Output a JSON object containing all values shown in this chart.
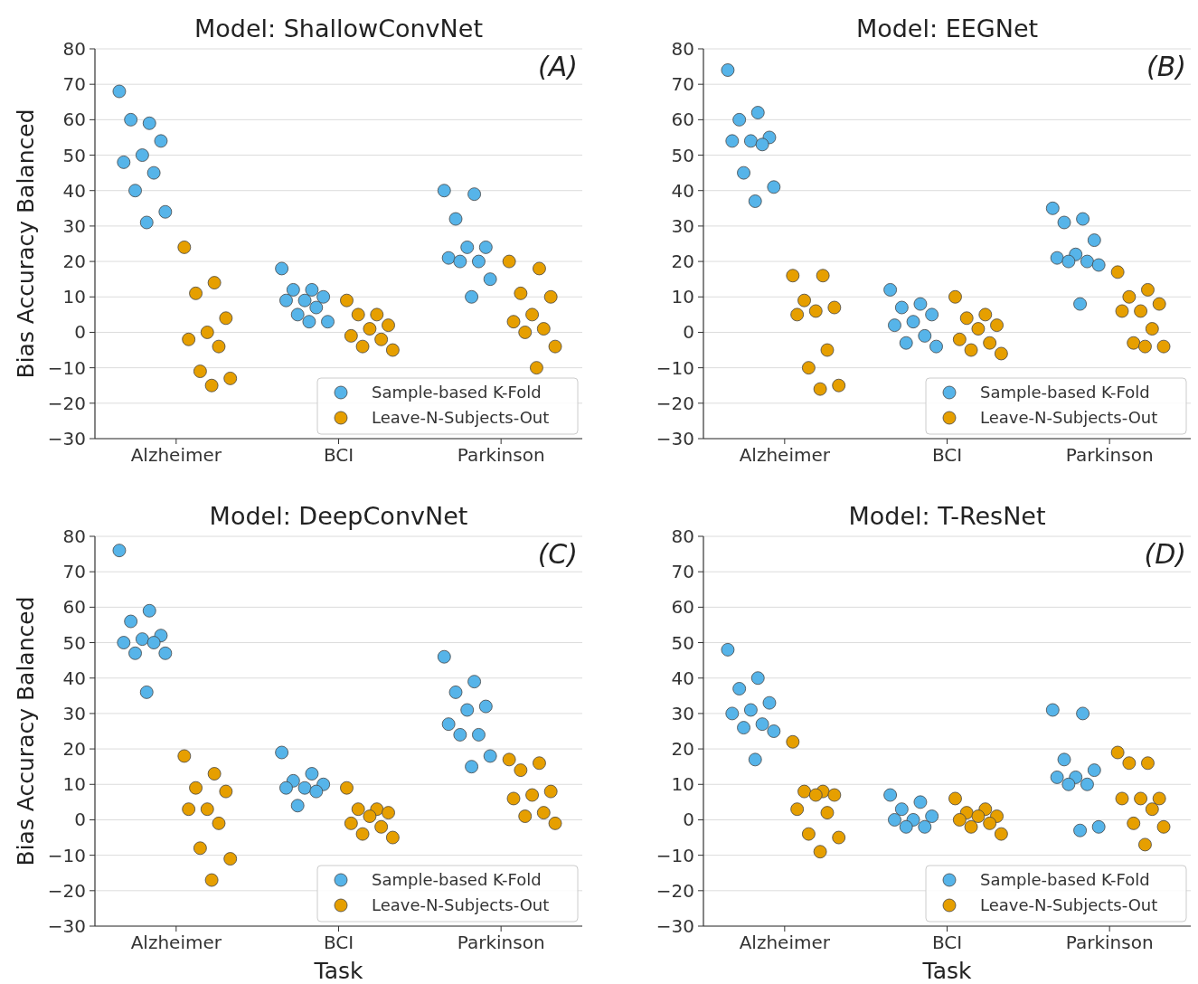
{
  "chart_data": [
    {
      "type": "scatter",
      "title": "Model: ShallowConvNet",
      "ylabel": "Bias Accuracy Balanced",
      "annotations": [
        "(A)"
      ],
      "categories": [
        "Alzheimer",
        "BCI",
        "Parkinson"
      ],
      "ylim": [
        -30,
        80
      ],
      "yticks": [
        -30,
        -20,
        -10,
        0,
        10,
        20,
        30,
        40,
        50,
        60,
        70,
        80
      ],
      "grid": "y",
      "legend": "bottom right",
      "marker": "circle",
      "series": [
        {
          "name": "Sample-based K-Fold",
          "color": "#56b4e9",
          "x": [
            "Alzheimer",
            "Alzheimer",
            "Alzheimer",
            "Alzheimer",
            "Alzheimer",
            "Alzheimer",
            "Alzheimer",
            "Alzheimer",
            "Alzheimer",
            "Alzheimer",
            "BCI",
            "BCI",
            "BCI",
            "BCI",
            "BCI",
            "BCI",
            "BCI",
            "BCI",
            "BCI",
            "BCI",
            "Parkinson",
            "Parkinson",
            "Parkinson",
            "Parkinson",
            "Parkinson",
            "Parkinson",
            "Parkinson",
            "Parkinson",
            "Parkinson",
            "Parkinson"
          ],
          "values": [
            68,
            59,
            60,
            54,
            50,
            48,
            45,
            40,
            34,
            31,
            18,
            12,
            12,
            10,
            9,
            9,
            7,
            5,
            3,
            3,
            40,
            39,
            32,
            24,
            24,
            21,
            20,
            20,
            15,
            10
          ]
        },
        {
          "name": "Leave-N-Subjects-Out",
          "color": "#e69f00",
          "x": [
            "Alzheimer",
            "Alzheimer",
            "Alzheimer",
            "Alzheimer",
            "Alzheimer",
            "Alzheimer",
            "Alzheimer",
            "Alzheimer",
            "Alzheimer",
            "Alzheimer",
            "BCI",
            "BCI",
            "BCI",
            "BCI",
            "BCI",
            "BCI",
            "BCI",
            "BCI",
            "BCI",
            "Parkinson",
            "Parkinson",
            "Parkinson",
            "Parkinson",
            "Parkinson",
            "Parkinson",
            "Parkinson",
            "Parkinson",
            "Parkinson",
            "Parkinson"
          ],
          "values": [
            24,
            14,
            11,
            4,
            0,
            -2,
            -4,
            -11,
            -13,
            -15,
            9,
            5,
            5,
            2,
            1,
            -1,
            -2,
            -4,
            -5,
            20,
            18,
            11,
            10,
            5,
            3,
            1,
            0,
            -4,
            -10
          ]
        }
      ]
    },
    {
      "type": "scatter",
      "title": "Model: EEGNet",
      "annotations": [
        "(B)"
      ],
      "categories": [
        "Alzheimer",
        "BCI",
        "Parkinson"
      ],
      "ylim": [
        -30,
        80
      ],
      "yticks": [
        -30,
        -20,
        -10,
        0,
        10,
        20,
        30,
        40,
        50,
        60,
        70,
        80
      ],
      "grid": "y",
      "legend": "bottom right",
      "marker": "circle",
      "series": [
        {
          "name": "Sample-based K-Fold",
          "color": "#56b4e9",
          "x": [
            "Alzheimer",
            "Alzheimer",
            "Alzheimer",
            "Alzheimer",
            "Alzheimer",
            "Alzheimer",
            "Alzheimer",
            "Alzheimer",
            "Alzheimer",
            "Alzheimer",
            "BCI",
            "BCI",
            "BCI",
            "BCI",
            "BCI",
            "BCI",
            "BCI",
            "BCI",
            "BCI",
            "Parkinson",
            "Parkinson",
            "Parkinson",
            "Parkinson",
            "Parkinson",
            "Parkinson",
            "Parkinson",
            "Parkinson",
            "Parkinson",
            "Parkinson"
          ],
          "values": [
            74,
            62,
            60,
            55,
            54,
            54,
            53,
            45,
            41,
            37,
            12,
            8,
            7,
            5,
            3,
            2,
            -1,
            -3,
            -4,
            35,
            32,
            31,
            26,
            22,
            21,
            20,
            20,
            19,
            8
          ]
        },
        {
          "name": "Leave-N-Subjects-Out",
          "color": "#e69f00",
          "x": [
            "Alzheimer",
            "Alzheimer",
            "Alzheimer",
            "Alzheimer",
            "Alzheimer",
            "Alzheimer",
            "Alzheimer",
            "Alzheimer",
            "Alzheimer",
            "Alzheimer",
            "BCI",
            "BCI",
            "BCI",
            "BCI",
            "BCI",
            "BCI",
            "BCI",
            "BCI",
            "BCI",
            "Parkinson",
            "Parkinson",
            "Parkinson",
            "Parkinson",
            "Parkinson",
            "Parkinson",
            "Parkinson",
            "Parkinson",
            "Parkinson",
            "Parkinson"
          ],
          "values": [
            16,
            16,
            9,
            7,
            6,
            5,
            -5,
            -10,
            -15,
            -16,
            10,
            5,
            4,
            2,
            1,
            -2,
            -3,
            -5,
            -6,
            17,
            12,
            10,
            8,
            6,
            6,
            1,
            -3,
            -4,
            -4
          ]
        }
      ]
    },
    {
      "type": "scatter",
      "title": "Model: DeepConvNet",
      "xlabel": "Task",
      "ylabel": "Bias Accuracy Balanced",
      "annotations": [
        "(C)"
      ],
      "categories": [
        "Alzheimer",
        "BCI",
        "Parkinson"
      ],
      "ylim": [
        -30,
        80
      ],
      "yticks": [
        -30,
        -20,
        -10,
        0,
        10,
        20,
        30,
        40,
        50,
        60,
        70,
        80
      ],
      "grid": "y",
      "legend": "bottom right",
      "marker": "circle",
      "series": [
        {
          "name": "Sample-based K-Fold",
          "color": "#56b4e9",
          "x": [
            "Alzheimer",
            "Alzheimer",
            "Alzheimer",
            "Alzheimer",
            "Alzheimer",
            "Alzheimer",
            "Alzheimer",
            "Alzheimer",
            "Alzheimer",
            "Alzheimer",
            "BCI",
            "BCI",
            "BCI",
            "BCI",
            "BCI",
            "BCI",
            "BCI",
            "BCI",
            "Parkinson",
            "Parkinson",
            "Parkinson",
            "Parkinson",
            "Parkinson",
            "Parkinson",
            "Parkinson",
            "Parkinson",
            "Parkinson",
            "Parkinson"
          ],
          "values": [
            76,
            59,
            56,
            52,
            51,
            50,
            50,
            47,
            47,
            36,
            19,
            13,
            11,
            10,
            9,
            9,
            8,
            4,
            46,
            39,
            36,
            32,
            31,
            27,
            24,
            24,
            18,
            15
          ]
        },
        {
          "name": "Leave-N-Subjects-Out",
          "color": "#e69f00",
          "x": [
            "Alzheimer",
            "Alzheimer",
            "Alzheimer",
            "Alzheimer",
            "Alzheimer",
            "Alzheimer",
            "Alzheimer",
            "Alzheimer",
            "Alzheimer",
            "Alzheimer",
            "BCI",
            "BCI",
            "BCI",
            "BCI",
            "BCI",
            "BCI",
            "BCI",
            "BCI",
            "BCI",
            "Parkinson",
            "Parkinson",
            "Parkinson",
            "Parkinson",
            "Parkinson",
            "Parkinson",
            "Parkinson",
            "Parkinson",
            "Parkinson"
          ],
          "values": [
            18,
            13,
            9,
            8,
            3,
            3,
            -1,
            -8,
            -11,
            -17,
            9,
            3,
            3,
            2,
            1,
            -1,
            -2,
            -4,
            -5,
            17,
            16,
            14,
            8,
            7,
            6,
            2,
            1,
            -1
          ]
        }
      ]
    },
    {
      "type": "scatter",
      "title": "Model: T-ResNet",
      "xlabel": "Task",
      "annotations": [
        "(D)"
      ],
      "categories": [
        "Alzheimer",
        "BCI",
        "Parkinson"
      ],
      "ylim": [
        -30,
        80
      ],
      "yticks": [
        -30,
        -20,
        -10,
        0,
        10,
        20,
        30,
        40,
        50,
        60,
        70,
        80
      ],
      "grid": "y",
      "legend": "bottom right",
      "marker": "circle",
      "series": [
        {
          "name": "Sample-based K-Fold",
          "color": "#56b4e9",
          "x": [
            "Alzheimer",
            "Alzheimer",
            "Alzheimer",
            "Alzheimer",
            "Alzheimer",
            "Alzheimer",
            "Alzheimer",
            "Alzheimer",
            "Alzheimer",
            "Alzheimer",
            "BCI",
            "BCI",
            "BCI",
            "BCI",
            "BCI",
            "BCI",
            "BCI",
            "BCI",
            "Parkinson",
            "Parkinson",
            "Parkinson",
            "Parkinson",
            "Parkinson",
            "Parkinson",
            "Parkinson",
            "Parkinson",
            "Parkinson",
            "Parkinson"
          ],
          "values": [
            48,
            40,
            37,
            33,
            31,
            30,
            27,
            26,
            25,
            17,
            7,
            5,
            3,
            1,
            0,
            0,
            -2,
            -2,
            31,
            30,
            17,
            14,
            12,
            12,
            10,
            10,
            -2,
            -3
          ]
        },
        {
          "name": "Leave-N-Subjects-Out",
          "color": "#e69f00",
          "x": [
            "Alzheimer",
            "Alzheimer",
            "Alzheimer",
            "Alzheimer",
            "Alzheimer",
            "Alzheimer",
            "Alzheimer",
            "Alzheimer",
            "Alzheimer",
            "Alzheimer",
            "BCI",
            "BCI",
            "BCI",
            "BCI",
            "BCI",
            "BCI",
            "BCI",
            "BCI",
            "BCI",
            "Parkinson",
            "Parkinson",
            "Parkinson",
            "Parkinson",
            "Parkinson",
            "Parkinson",
            "Parkinson",
            "Parkinson",
            "Parkinson",
            "Parkinson"
          ],
          "values": [
            22,
            8,
            8,
            7,
            7,
            3,
            2,
            -4,
            -5,
            -9,
            6,
            3,
            2,
            1,
            1,
            0,
            -1,
            -2,
            -4,
            19,
            16,
            16,
            6,
            6,
            6,
            3,
            -1,
            -2,
            -7
          ]
        }
      ]
    }
  ]
}
